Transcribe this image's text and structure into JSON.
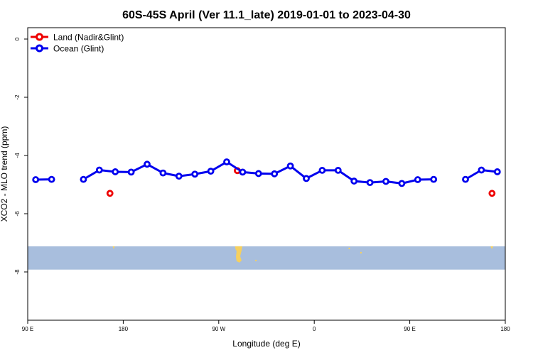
{
  "chart_data": {
    "type": "line",
    "title": "60S-45S April (Ver 11.1_late)   2019-01-01 to 2023-04-30",
    "xlabel": "Longitude (deg E)",
    "ylabel": "XCO2 - MLO trend (ppm)",
    "xlim": [
      90,
      450
    ],
    "ylim": [
      -9.6,
      0.4
    ],
    "x_ticks": [
      {
        "value": 90,
        "label": "90 E"
      },
      {
        "value": 180,
        "label": "180"
      },
      {
        "value": 270,
        "label": "90 W"
      },
      {
        "value": 360,
        "label": "0"
      },
      {
        "value": 450,
        "label": "90 E"
      },
      {
        "value": 540,
        "label": "180"
      }
    ],
    "y_ticks": [
      {
        "value": 0,
        "label": "0"
      },
      {
        "value": -2,
        "label": "-2"
      },
      {
        "value": -4,
        "label": "-4"
      },
      {
        "value": -6,
        "label": "-6"
      },
      {
        "value": -8,
        "label": "-8"
      }
    ],
    "grid": false,
    "legend_position": "top-left",
    "series": [
      {
        "name": "Land (Nadir&Glint)",
        "color": "#ee0000",
        "style": "points",
        "points": [
          {
            "x": 167.5,
            "y": -5.3
          },
          {
            "x": 287.5,
            "y": -4.52
          },
          {
            "x": 527.5,
            "y": -5.3
          }
        ]
      },
      {
        "name": "Ocean (Glint)",
        "color": "#0000ee",
        "style": "line",
        "points": [
          {
            "x": 97.5,
            "y": -4.83
          },
          {
            "x": 112.5,
            "y": -4.82
          },
          null,
          {
            "x": 142.5,
            "y": -4.82
          },
          {
            "x": 157.5,
            "y": -4.5
          },
          {
            "x": 172.5,
            "y": -4.56
          },
          {
            "x": 187.5,
            "y": -4.57
          },
          {
            "x": 202.5,
            "y": -4.3
          },
          {
            "x": 217.5,
            "y": -4.6
          },
          {
            "x": 232.5,
            "y": -4.71
          },
          {
            "x": 247.5,
            "y": -4.64
          },
          {
            "x": 262.5,
            "y": -4.54
          },
          {
            "x": 277.5,
            "y": -4.22
          },
          {
            "x": 292.5,
            "y": -4.57
          },
          {
            "x": 307.5,
            "y": -4.62
          },
          {
            "x": 322.5,
            "y": -4.63
          },
          {
            "x": 337.5,
            "y": -4.36
          },
          {
            "x": 352.5,
            "y": -4.79
          },
          {
            "x": 367.5,
            "y": -4.51
          },
          {
            "x": 382.5,
            "y": -4.51
          },
          {
            "x": 397.5,
            "y": -4.88
          },
          {
            "x": 412.5,
            "y": -4.93
          },
          {
            "x": 427.5,
            "y": -4.89
          },
          {
            "x": 442.5,
            "y": -4.96
          },
          {
            "x": 457.5,
            "y": -4.83
          },
          {
            "x": 472.5,
            "y": -4.82
          },
          null,
          {
            "x": 502.5,
            "y": -4.82
          },
          {
            "x": 517.5,
            "y": -4.5
          },
          {
            "x": 532.5,
            "y": -4.56
          }
        ]
      }
    ],
    "map_inset": {
      "description_color_ocean": "#a8bedd",
      "description_color_land": "#f5d060",
      "lat_range_as_y": [
        -7.12,
        -7.92
      ]
    }
  }
}
